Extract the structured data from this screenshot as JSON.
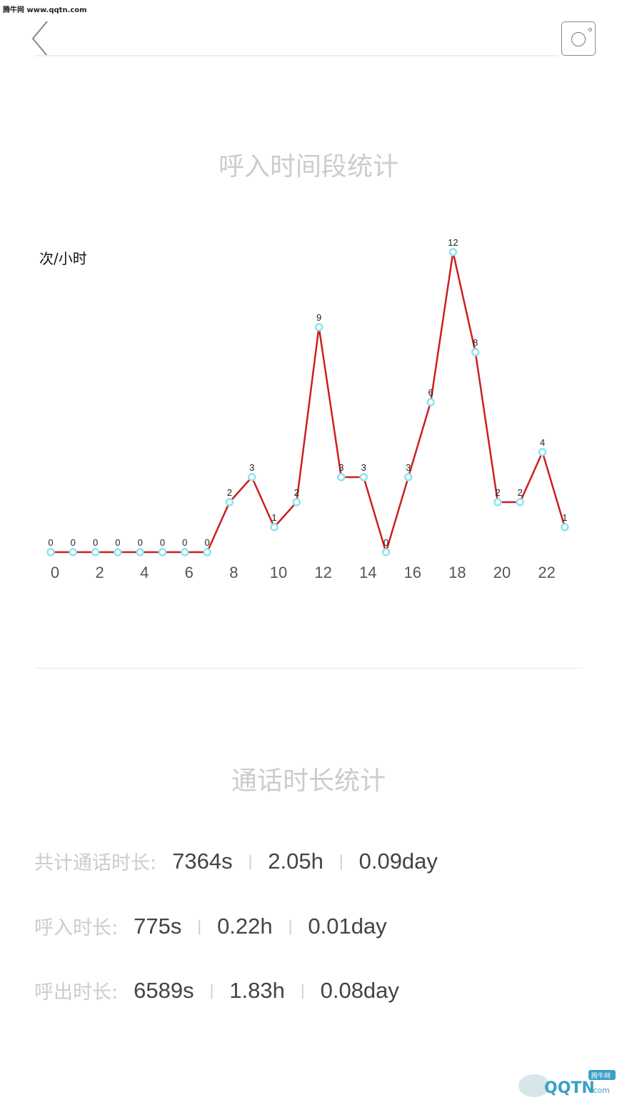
{
  "watermark": "腾牛网 www.qqtn.com",
  "header": {
    "back_icon": "chevron-left-icon",
    "camera_icon": "camera-icon"
  },
  "section1": {
    "title": "呼入时间段统计"
  },
  "chart_data": {
    "type": "line",
    "title": "呼入时间段统计",
    "ylabel": "次/小时",
    "x": [
      0,
      1,
      2,
      3,
      4,
      5,
      6,
      7,
      8,
      9,
      10,
      11,
      12,
      13,
      14,
      15,
      16,
      17,
      18,
      19,
      20,
      21,
      22,
      23
    ],
    "tick_labels": [
      "0",
      "2",
      "4",
      "6",
      "8",
      "10",
      "12",
      "14",
      "16",
      "18",
      "20",
      "22"
    ],
    "values": [
      0,
      0,
      0,
      0,
      0,
      0,
      0,
      0,
      2,
      3,
      1,
      2,
      9,
      3,
      3,
      0,
      3,
      6,
      12,
      8,
      2,
      2,
      4,
      1
    ],
    "ylim": [
      0,
      12
    ],
    "grid": false,
    "line_color": "#cc1f1f",
    "marker_color": "#8fe3ee"
  },
  "section2": {
    "title": "通话时长统计"
  },
  "stats": [
    {
      "label": "共计通话时长:",
      "seconds": "7364s",
      "hours": "2.05h",
      "days": "0.09day"
    },
    {
      "label": "呼入时长:",
      "seconds": "775s",
      "hours": "0.22h",
      "days": "0.01day"
    },
    {
      "label": "呼出时长:",
      "seconds": "6589s",
      "hours": "1.83h",
      "days": "0.08day"
    }
  ],
  "separator": "|",
  "logo": {
    "text": "QQTN.com",
    "sub": "腾牛网"
  }
}
